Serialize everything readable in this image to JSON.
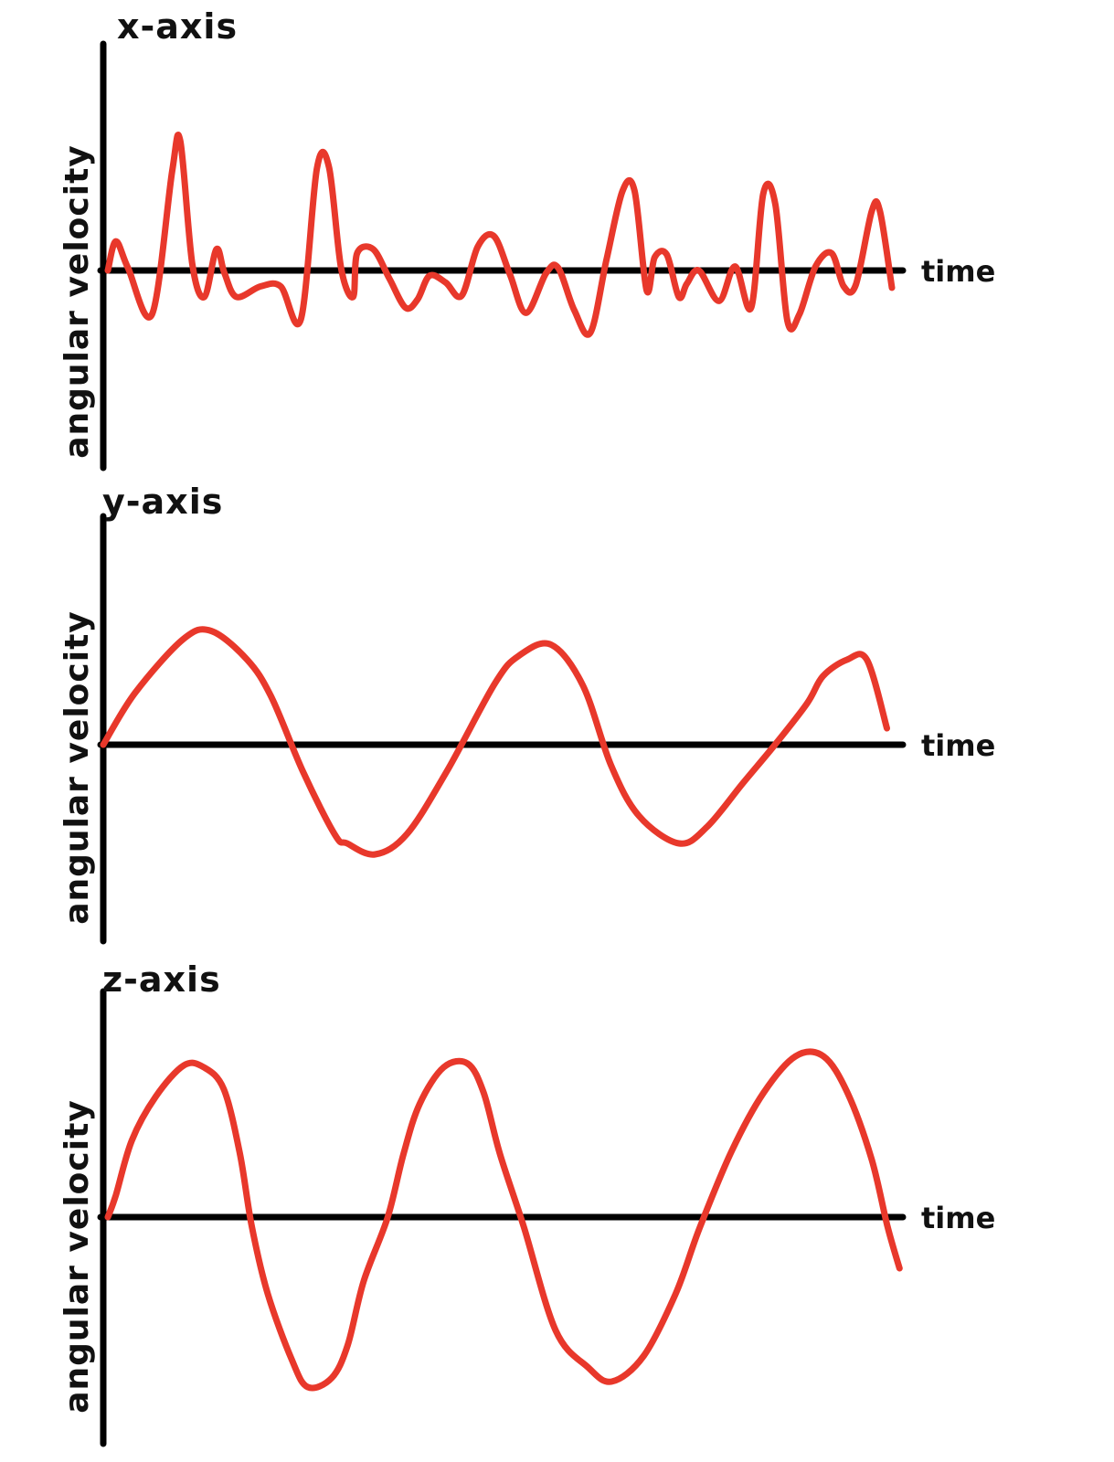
{
  "colors": {
    "axis": "#000000",
    "curve": "#e8382b"
  },
  "chart_data": [
    {
      "type": "line",
      "title": "x-axis",
      "xlabel": "time",
      "ylabel": "angular velocity",
      "grid": false,
      "xlim": [
        0,
        100
      ],
      "ylim": [
        -1,
        1
      ],
      "series": [
        {
          "x": [
            0,
            1,
            2.5,
            5.5,
            8,
            9,
            10.5,
            12,
            13.5,
            14.5,
            16,
            19,
            21.5,
            24,
            26,
            27.5,
            29,
            30.5,
            31,
            33,
            35,
            37,
            38.5,
            40,
            42,
            44,
            46,
            48,
            50,
            52,
            54.5,
            56,
            58,
            60,
            62,
            64,
            65.5,
            67,
            68,
            69.5,
            71,
            72,
            73.5,
            76,
            78,
            80,
            81.5,
            83,
            84.5,
            86,
            88,
            90,
            91.5,
            93,
            95,
            96,
            97.5
          ],
          "y": [
            0,
            0.22,
            0.02,
            -0.33,
            0.75,
            0.98,
            0.05,
            -0.2,
            0.16,
            -0.02,
            -0.2,
            -0.12,
            -0.12,
            -0.37,
            0.77,
            0.78,
            0.02,
            -0.2,
            0.13,
            0.16,
            -0.06,
            -0.28,
            -0.22,
            -0.04,
            -0.09,
            -0.19,
            0.18,
            0.26,
            -0.03,
            -0.32,
            -0.02,
            0.02,
            -0.3,
            -0.47,
            0.08,
            0.6,
            0.6,
            -0.15,
            0.1,
            0.12,
            -0.2,
            -0.1,
            0.0,
            -0.23,
            0.03,
            -0.28,
            0.58,
            0.5,
            -0.38,
            -0.33,
            0.03,
            0.13,
            -0.12,
            -0.11,
            0.45,
            0.45,
            -0.13
          ]
        }
      ]
    },
    {
      "type": "line",
      "title": "y-axis",
      "xlabel": "time",
      "ylabel": "angular velocity",
      "grid": false,
      "xlim": [
        0,
        100
      ],
      "ylim": [
        -1,
        1
      ],
      "series": [
        {
          "x": [
            0,
            4,
            10,
            13.5,
            18,
            21,
            25,
            29,
            30.5,
            34,
            38,
            43,
            49,
            52,
            56,
            60,
            63.5,
            67,
            72,
            75.5,
            80,
            84,
            88,
            90,
            93,
            95.5,
            98
          ],
          "y": [
            0,
            0.38,
            0.77,
            0.83,
            0.62,
            0.35,
            -0.2,
            -0.66,
            -0.72,
            -0.8,
            -0.65,
            -0.19,
            0.45,
            0.65,
            0.73,
            0.43,
            -0.15,
            -0.52,
            -0.72,
            -0.6,
            -0.28,
            0.0,
            0.3,
            0.5,
            0.62,
            0.62,
            0.12
          ]
        }
      ]
    },
    {
      "type": "line",
      "title": "z-axis",
      "xlabel": "time",
      "ylabel": "angular velocity",
      "grid": false,
      "xlim": [
        0,
        100
      ],
      "ylim": [
        -1,
        1
      ],
      "series": [
        {
          "x": [
            0,
            1,
            3,
            6,
            9.5,
            12,
            14.5,
            16.5,
            18,
            20,
            23,
            25,
            28,
            30,
            32,
            35,
            37,
            39,
            42,
            45,
            47,
            49,
            52,
            56,
            60,
            63,
            67,
            71,
            74,
            78,
            82,
            86,
            89.5,
            92.5,
            95.5,
            97.5,
            99
          ],
          "y": [
            0,
            0.12,
            0.42,
            0.66,
            0.83,
            0.82,
            0.7,
            0.35,
            -0.05,
            -0.42,
            -0.78,
            -0.93,
            -0.88,
            -0.7,
            -0.35,
            0.0,
            0.35,
            0.62,
            0.82,
            0.84,
            0.68,
            0.35,
            -0.05,
            -0.62,
            -0.82,
            -0.9,
            -0.76,
            -0.42,
            -0.06,
            0.36,
            0.68,
            0.88,
            0.88,
            0.68,
            0.32,
            -0.05,
            -0.28
          ]
        }
      ]
    }
  ]
}
